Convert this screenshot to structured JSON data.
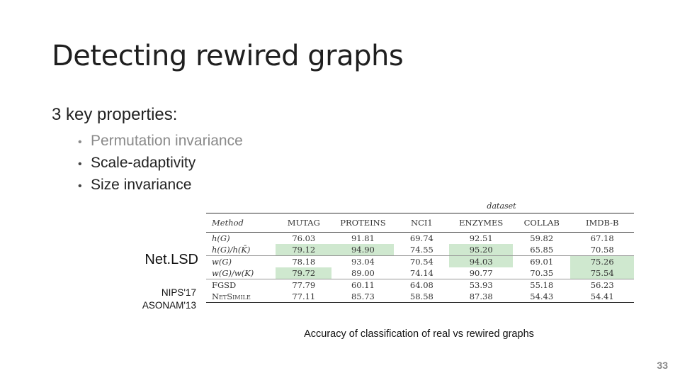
{
  "slide": {
    "title": "Detecting rewired graphs",
    "heading": "3 key properties:",
    "bullets": [
      {
        "text": "Permutation invariance",
        "muted": true
      },
      {
        "text": "Scale-adaptivity",
        "muted": false
      },
      {
        "text": "Size invariance",
        "muted": false
      }
    ],
    "labels": {
      "netlsd": "Net.LSD",
      "nips": "NIPS'17",
      "asonam": "ASONAM'13"
    },
    "caption": "Accuracy of classification of real vs rewired graphs",
    "page_number": "33"
  },
  "table": {
    "group_label": "dataset",
    "headers": [
      "Method",
      "MUTAG",
      "PROTEINS",
      "NCI1",
      "ENZYMES",
      "COLLAB",
      "IMDB-B"
    ],
    "rows": [
      {
        "method": "h(G)",
        "values": [
          "76.03",
          "91.81",
          "69.74",
          "92.51",
          "59.82",
          "67.18"
        ],
        "highlight": [
          false,
          false,
          false,
          false,
          false,
          false
        ]
      },
      {
        "method": "h(G)/h(K̄)",
        "values": [
          "79.12",
          "94.90",
          "74.55",
          "95.20",
          "65.85",
          "70.58"
        ],
        "highlight": [
          true,
          true,
          false,
          true,
          false,
          false
        ]
      },
      {
        "method": "w(G)",
        "values": [
          "78.18",
          "93.04",
          "70.54",
          "94.03",
          "69.01",
          "75.26"
        ],
        "highlight": [
          false,
          false,
          false,
          true,
          false,
          true
        ]
      },
      {
        "method": "w(G)/w(K)",
        "values": [
          "79.72",
          "89.00",
          "74.14",
          "90.77",
          "70.35",
          "75.54"
        ],
        "highlight": [
          true,
          false,
          false,
          false,
          false,
          true
        ]
      },
      {
        "method": "FGSD",
        "values": [
          "77.79",
          "60.11",
          "64.08",
          "53.93",
          "55.18",
          "56.23"
        ],
        "highlight": [
          false,
          false,
          false,
          false,
          false,
          false
        ]
      },
      {
        "method": "NetSimile",
        "values": [
          "77.11",
          "85.73",
          "58.58",
          "87.38",
          "54.43",
          "54.41"
        ],
        "highlight": [
          false,
          false,
          false,
          false,
          false,
          false
        ]
      }
    ],
    "highlight_color": "#cfe8cf"
  }
}
